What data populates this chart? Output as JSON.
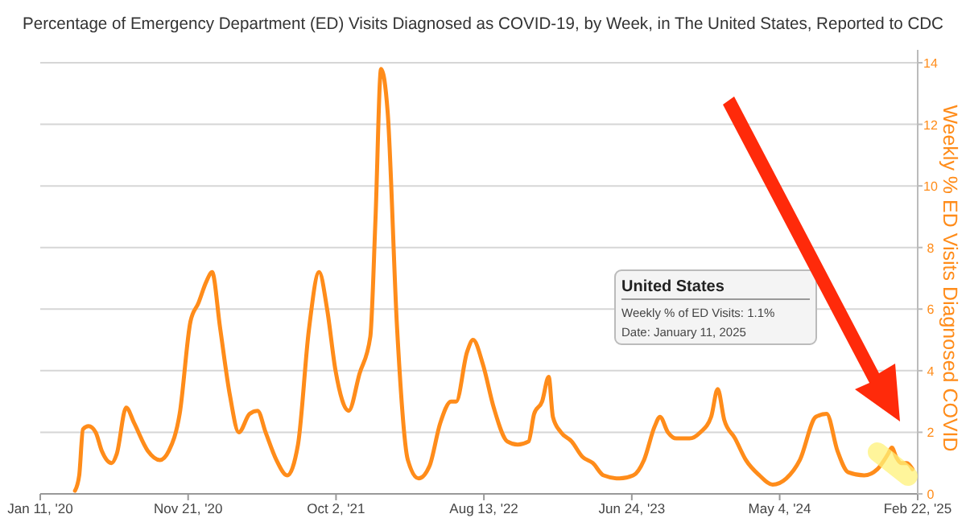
{
  "chart_data": {
    "type": "line",
    "title": "Percentage of Emergency Department (ED) Visits Diagnosed as COVID-19, by Week, in The United States, Reported to CDC",
    "ylabel": "Weekly % ED Visits Diagnosed COVID",
    "annotations": [
      "United States",
      "Weekly % of ED Visits: 1.1%",
      "Date: January 11, 2025"
    ],
    "xlim": [
      "2020-01-11",
      "2025-02-22"
    ],
    "xticks": [
      {
        "value": "2020-01-11",
        "label": "Jan 11, '20"
      },
      {
        "value": "2020-11-21",
        "label": "Nov 21, '20"
      },
      {
        "value": "2021-10-02",
        "label": "Oct 2, '21"
      },
      {
        "value": "2022-08-13",
        "label": "Aug 13, '22"
      },
      {
        "value": "2023-06-24",
        "label": "Jun 24, '23"
      },
      {
        "value": "2024-05-04",
        "label": "May 4, '24"
      },
      {
        "value": "2025-02-22",
        "label": "Feb 22, '25"
      }
    ],
    "ylim": [
      0,
      14
    ],
    "yticks": [
      0,
      2,
      4,
      6,
      8,
      10,
      12,
      14
    ],
    "grid": "y",
    "marker": "none",
    "line_style": "solid",
    "x": [
      "2020-03-25",
      "2020-04-03",
      "2020-04-11",
      "2020-04-23",
      "2020-05-08",
      "2020-05-21",
      "2020-06-11",
      "2020-06-22",
      "2020-07-12",
      "2020-07-29",
      "2020-08-27",
      "2020-09-22",
      "2020-10-11",
      "2020-11-03",
      "2020-11-26",
      "2020-12-13",
      "2020-12-30",
      "2021-01-11",
      "2021-01-28",
      "2021-02-18",
      "2021-03-09",
      "2021-04-01",
      "2021-04-18",
      "2021-05-05",
      "2021-05-28",
      "2021-06-20",
      "2021-07-13",
      "2021-08-05",
      "2021-08-27",
      "2021-09-13",
      "2021-10-01",
      "2021-10-29",
      "2021-11-21",
      "2021-12-14",
      "2021-12-25",
      "2022-01-06",
      "2022-01-20",
      "2022-02-09",
      "2022-03-04",
      "2022-03-27",
      "2022-04-19",
      "2022-05-12",
      "2022-06-04",
      "2022-06-15",
      "2022-07-08",
      "2022-07-21",
      "2022-08-11",
      "2022-09-03",
      "2022-10-02",
      "2022-10-24",
      "2022-11-16",
      "2022-11-28",
      "2022-12-15",
      "2022-12-29",
      "2023-01-07",
      "2023-01-24",
      "2023-02-16",
      "2023-03-11",
      "2023-04-02",
      "2023-04-25",
      "2023-05-29",
      "2023-06-27",
      "2023-07-20",
      "2023-08-12",
      "2023-08-23",
      "2023-09-09",
      "2023-09-27",
      "2023-10-14",
      "2023-10-25",
      "2023-11-17",
      "2023-12-10",
      "2023-12-24",
      "2024-01-07",
      "2024-01-30",
      "2024-02-22",
      "2024-03-22",
      "2024-04-19",
      "2024-05-18",
      "2024-06-16",
      "2024-07-20",
      "2024-08-12",
      "2024-09-04",
      "2024-09-27",
      "2024-10-31",
      "2024-11-28",
      "2024-12-21",
      "2024-12-29",
      "2025-01-07",
      "2025-01-18",
      "2025-01-30",
      "2025-02-11"
    ],
    "series": [
      {
        "color": "#ff8c1a",
        "values": [
          0.1,
          0.6,
          2.1,
          2.2,
          2.0,
          1.4,
          1.0,
          1.3,
          2.8,
          2.3,
          1.4,
          1.1,
          1.4,
          2.6,
          5.6,
          6.2,
          6.9,
          7.2,
          5.4,
          3.2,
          2.0,
          2.6,
          2.7,
          2.0,
          1.1,
          0.6,
          1.6,
          5.3,
          7.2,
          6.0,
          4.0,
          2.7,
          3.9,
          5.1,
          8.9,
          13.8,
          12.4,
          5.4,
          1.1,
          0.5,
          0.9,
          2.3,
          3.0,
          3.0,
          4.6,
          5.0,
          4.2,
          2.8,
          1.7,
          1.6,
          1.7,
          2.6,
          3.0,
          3.8,
          2.5,
          2.0,
          1.7,
          1.2,
          1.0,
          0.6,
          0.5,
          0.6,
          1.1,
          2.2,
          2.5,
          2.0,
          1.8,
          1.8,
          1.8,
          2.0,
          2.5,
          3.4,
          2.4,
          1.8,
          1.1,
          0.6,
          0.3,
          0.5,
          1.1,
          2.5,
          2.6,
          1.4,
          0.7,
          0.6,
          0.8,
          1.3,
          1.5,
          1.2,
          1.0,
          1.0,
          0.8
        ]
      }
    ]
  }
}
